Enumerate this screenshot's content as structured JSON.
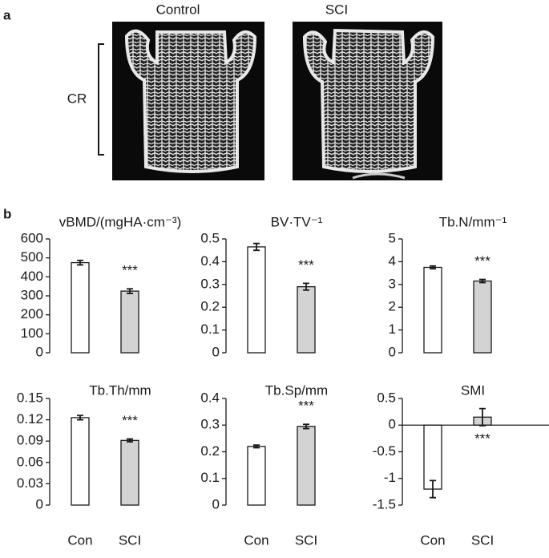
{
  "figure": {
    "panel_a": "a",
    "panel_b": "b",
    "image_left_label": "Control",
    "image_right_label": "SCI",
    "region_label": "CR"
  },
  "chart_data": [
    {
      "type": "bar",
      "title": "vBMD/(mgHA·cm⁻³)",
      "categories": [
        null,
        null
      ],
      "values": [
        475,
        325
      ],
      "errors": [
        12,
        12
      ],
      "colors": [
        "#ffffff",
        "#d3d3d3"
      ],
      "ylim": [
        0,
        600
      ],
      "yticks": [
        0,
        100,
        200,
        300,
        400,
        500,
        600
      ],
      "annotation": "***"
    },
    {
      "type": "bar",
      "title": "BV·TV⁻¹",
      "categories": [
        null,
        null
      ],
      "values": [
        0.465,
        0.29
      ],
      "errors": [
        0.015,
        0.015
      ],
      "colors": [
        "#ffffff",
        "#d3d3d3"
      ],
      "ylim": [
        0,
        0.5
      ],
      "yticks": [
        0,
        0.1,
        0.2,
        0.3,
        0.4,
        0.5
      ],
      "annotation": "***"
    },
    {
      "type": "bar",
      "title": "Tb.N/mm⁻¹",
      "categories": [
        null,
        null
      ],
      "values": [
        3.75,
        3.15
      ],
      "errors": [
        0.06,
        0.07
      ],
      "colors": [
        "#ffffff",
        "#d3d3d3"
      ],
      "ylim": [
        0,
        5
      ],
      "yticks": [
        0,
        1,
        2,
        3,
        4,
        5
      ],
      "annotation": "***"
    },
    {
      "type": "bar",
      "title": "Tb.Th/mm",
      "categories": [
        "Con",
        "SCI"
      ],
      "values": [
        0.123,
        0.091
      ],
      "errors": [
        0.003,
        0.002
      ],
      "colors": [
        "#ffffff",
        "#d3d3d3"
      ],
      "ylim": [
        0,
        0.15
      ],
      "yticks": [
        0,
        0.03,
        0.06,
        0.09,
        0.12,
        0.15
      ],
      "annotation": "***"
    },
    {
      "type": "bar",
      "title": "Tb.Sp/mm",
      "categories": [
        "Con",
        "SCI"
      ],
      "values": [
        0.22,
        0.295
      ],
      "errors": [
        0.005,
        0.008
      ],
      "colors": [
        "#ffffff",
        "#d3d3d3"
      ],
      "ylim": [
        0,
        0.4
      ],
      "yticks": [
        0,
        0.1,
        0.2,
        0.3,
        0.4
      ],
      "annotation": "***"
    },
    {
      "type": "bar",
      "title": "SMI",
      "categories": [
        "Con",
        "SCI"
      ],
      "values": [
        -1.2,
        0.15
      ],
      "errors": [
        0.16,
        0.16
      ],
      "colors": [
        "#ffffff",
        "#d3d3d3"
      ],
      "ylim": [
        -1.5,
        0.5
      ],
      "yticks": [
        -1.5,
        -1,
        -0.5,
        0,
        0.5
      ],
      "annotation": "***"
    }
  ]
}
